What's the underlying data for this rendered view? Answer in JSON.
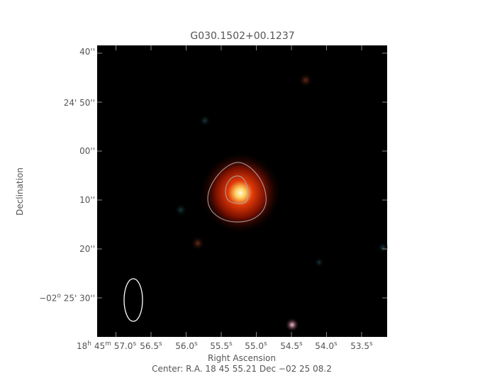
{
  "chart_data": {
    "type": "image",
    "title": "G030.1502+00.1237",
    "xlabel": "Right Ascension",
    "ylabel": "Declination",
    "x_ticks": [
      "18h 45m 57.0s",
      "56.5s",
      "56.0s",
      "55.5s",
      "55.0s",
      "54.5s",
      "54.0s",
      "53.5s"
    ],
    "x_tick_parts": [
      {
        "h": "18",
        "m": "45",
        "s": "57.0"
      },
      {
        "s": "56.5"
      },
      {
        "s": "56.0"
      },
      {
        "s": "55.5"
      },
      {
        "s": "55.0"
      },
      {
        "s": "54.5"
      },
      {
        "s": "54.0"
      },
      {
        "s": "53.5"
      }
    ],
    "y_ticks": [
      "40''",
      "24' 50''",
      "00''",
      "10''",
      "20''",
      "-02° 25' 30''"
    ],
    "y_tick_labels": [
      "40''",
      "24' 50''",
      "00''",
      "10''",
      "20''",
      "25' 30''"
    ],
    "y_tick_prefix": "−02",
    "center_text": "Center:  R.A. 18 45 55.21     Dec  −02 25 08.2",
    "background": "#000000",
    "colormap": "false-color RGB",
    "source_color": "#d02000",
    "contour_color": "#a0a0a0",
    "beam_color": "#ffffff",
    "contour_levels": 2
  }
}
